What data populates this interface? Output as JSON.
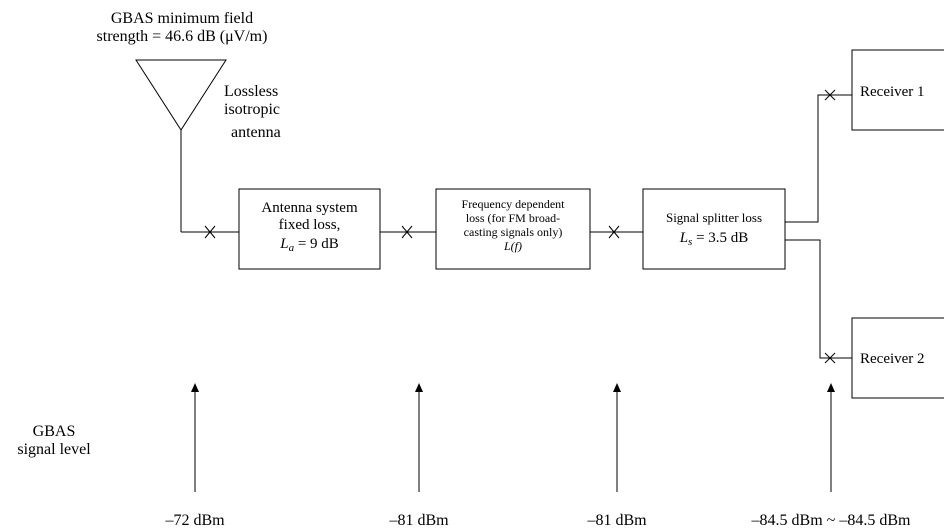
{
  "title": {
    "line1": "GBAS minimum field",
    "line2": "strength = 46.6 dB (μV/m)"
  },
  "antenna": {
    "line1": "Lossless",
    "line2": "isotropic",
    "line3": "antenna"
  },
  "box_antenna_system": {
    "line1": "Antenna system",
    "line2": "fixed loss,",
    "line3_sym": "L",
    "line3_sub": "a",
    "line3_rest": " = 9  dB"
  },
  "box_frequency": {
    "line1": "Frequency dependent",
    "line2": "loss (for FM broad-",
    "line3": "casting signals only)",
    "line4": "L(f)"
  },
  "box_splitter": {
    "line1": "Signal splitter loss",
    "line2_sym": "L",
    "line2_sub": "s",
    "line2_rest": " = 3.5  dB"
  },
  "receivers": [
    "Receiver 1",
    "Receiver 2"
  ],
  "signal_level_label": {
    "line1": "GBAS",
    "line2": "signal level"
  },
  "levels": [
    "–72 dBm",
    "–81 dBm",
    "–81 dBm",
    "–84.5 dBm ~ –84.5 dBm"
  ],
  "colors": {
    "line": "#000000",
    "background": "#ffffff"
  }
}
